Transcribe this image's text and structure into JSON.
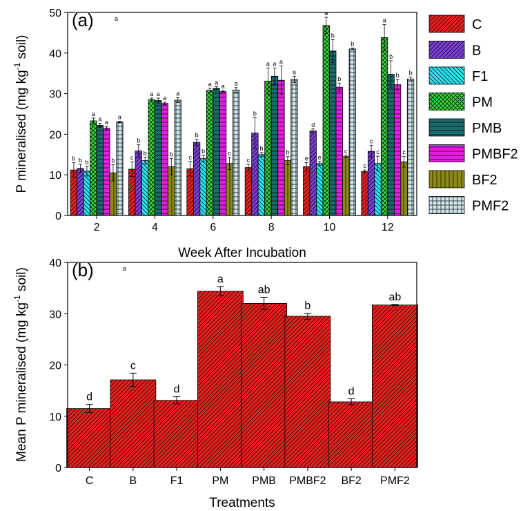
{
  "chart_data": [
    {
      "type": "bar",
      "panel_label": "(a)",
      "stray_label": "a",
      "xlabel": "Week After Incubation",
      "ylabel": "P mineralised (mg kg",
      "ylabel_sup": "-1",
      "ylabel_tail": " soil)",
      "ylim": [
        0,
        50
      ],
      "yticks": [
        0,
        10,
        20,
        30,
        40,
        50
      ],
      "categories": [
        "2",
        "4",
        "6",
        "8",
        "10",
        "12"
      ],
      "legend_position": "right",
      "series": [
        {
          "name": "C",
          "color": "#e8211f",
          "pattern": "diag",
          "values": [
            11.2,
            11.4,
            11.5,
            11.8,
            12.0,
            10.8
          ],
          "errors": [
            1.8,
            1.8,
            1.8,
            0.8,
            1.0,
            0.4
          ],
          "letters": [
            "b",
            "c",
            "c",
            "c",
            "e",
            "c"
          ]
        },
        {
          "name": "B",
          "color": "#7a3fd6",
          "pattern": "diag",
          "values": [
            11.6,
            15.9,
            18.0,
            20.3,
            20.8,
            15.8
          ],
          "errors": [
            1.0,
            1.5,
            0.8,
            3.8,
            0.5,
            1.5
          ],
          "letters": [
            "b",
            "b",
            "b",
            "b",
            "d",
            "c"
          ]
        },
        {
          "name": "F1",
          "color": "#29e3ef",
          "pattern": "back",
          "values": [
            10.9,
            13.5,
            14.0,
            15.0,
            12.8,
            12.8
          ],
          "errors": [
            1.2,
            0.8,
            0.8,
            0.5,
            0.5,
            1.8
          ],
          "letters": [
            "b",
            "b",
            "b",
            "b",
            "e",
            "c"
          ]
        },
        {
          "name": "PM",
          "color": "#39d83c",
          "pattern": "cross",
          "values": [
            23.3,
            28.5,
            30.8,
            33.1,
            46.8,
            43.8
          ],
          "errors": [
            0.7,
            0.4,
            0.5,
            3.2,
            2.0,
            3.2
          ],
          "letters": [
            "a",
            "a",
            "a",
            "a",
            "a",
            "a"
          ]
        },
        {
          "name": "PMB",
          "color": "#1b6a6d",
          "pattern": "hlines",
          "values": [
            22.2,
            28.3,
            31.3,
            34.3,
            40.5,
            34.8
          ],
          "errors": [
            0.5,
            0.6,
            0.4,
            2.0,
            2.8,
            3.3
          ],
          "letters": [
            "a",
            "a",
            "a",
            "a",
            "b",
            "b"
          ]
        },
        {
          "name": "PMBF2",
          "color": "#e31ee0",
          "pattern": "hlines",
          "values": [
            21.5,
            27.6,
            30.5,
            33.3,
            31.6,
            32.2
          ],
          "errors": [
            0.4,
            0.3,
            0.3,
            3.5,
            1.0,
            1.3
          ],
          "letters": [
            "a",
            "a",
            "a",
            "a",
            "b",
            "b"
          ]
        },
        {
          "name": "BF2",
          "color": "#8c8a14",
          "pattern": "vlines",
          "values": [
            10.5,
            12.0,
            12.8,
            13.5,
            14.5,
            13.2
          ],
          "errors": [
            2.0,
            2.0,
            1.5,
            1.0,
            0.3,
            1.3
          ],
          "letters": [
            "b",
            "b",
            "c",
            "b",
            "c",
            "c"
          ]
        },
        {
          "name": "PMF2",
          "color": "#cfe6ea",
          "pattern": "grid",
          "values": [
            23.0,
            28.4,
            30.9,
            33.5,
            41.0,
            33.6
          ],
          "errors": [
            0.2,
            0.6,
            0.6,
            0.8,
            0.2,
            0.5
          ],
          "letters": [
            "a",
            "a",
            "a",
            "a",
            "b",
            "b"
          ]
        }
      ]
    },
    {
      "type": "bar",
      "panel_label": "(b)",
      "stray_label": "a",
      "xlabel": "Treatments",
      "ylabel": "Mean P mineralised (mg kg",
      "ylabel_sup": "-1",
      "ylabel_tail": " soil)",
      "ylim": [
        0,
        40
      ],
      "yticks": [
        0,
        10,
        20,
        30,
        40
      ],
      "color": "#e8211f",
      "categories": [
        "C",
        "B",
        "F1",
        "PM",
        "PMB",
        "PMBF2",
        "BF2",
        "PMF2"
      ],
      "values": [
        11.5,
        17.1,
        13.1,
        34.4,
        32.0,
        29.5,
        12.8,
        31.7
      ],
      "errors": [
        0.8,
        1.3,
        0.7,
        0.9,
        1.2,
        0.6,
        0.6,
        0.1
      ],
      "letters": [
        "d",
        "c",
        "d",
        "a",
        "ab",
        "b",
        "d",
        "ab"
      ]
    }
  ]
}
